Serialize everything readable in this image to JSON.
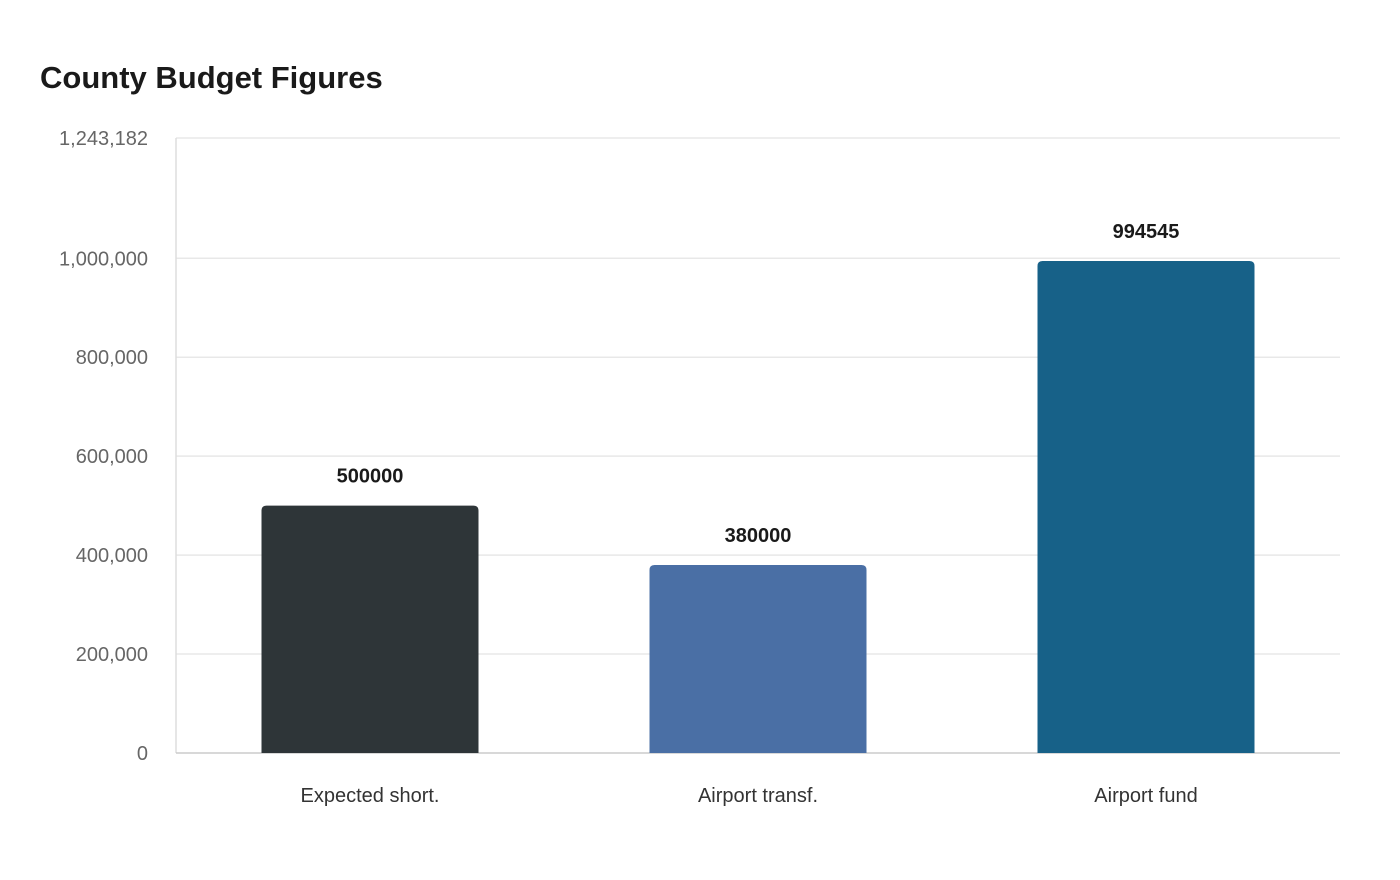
{
  "chart_data": {
    "type": "bar",
    "title": "County Budget Figures",
    "xlabel": "",
    "ylabel": "",
    "categories": [
      "Expected short.",
      "Airport transf.",
      "Airport fund"
    ],
    "values": [
      500000,
      380000,
      994545
    ],
    "data_labels": [
      "500000",
      "380000",
      "994545"
    ],
    "bar_colors": [
      "#2e3538",
      "#4a6fa5",
      "#176188"
    ],
    "ylim": [
      0,
      1243182
    ],
    "yticks": [
      0,
      200000,
      400000,
      600000,
      800000,
      1000000,
      1243182
    ],
    "ytick_labels": [
      "0",
      "200,000",
      "400,000",
      "600,000",
      "800,000",
      "1,000,000",
      "1,243,182"
    ],
    "grid": true,
    "legend": "none"
  }
}
